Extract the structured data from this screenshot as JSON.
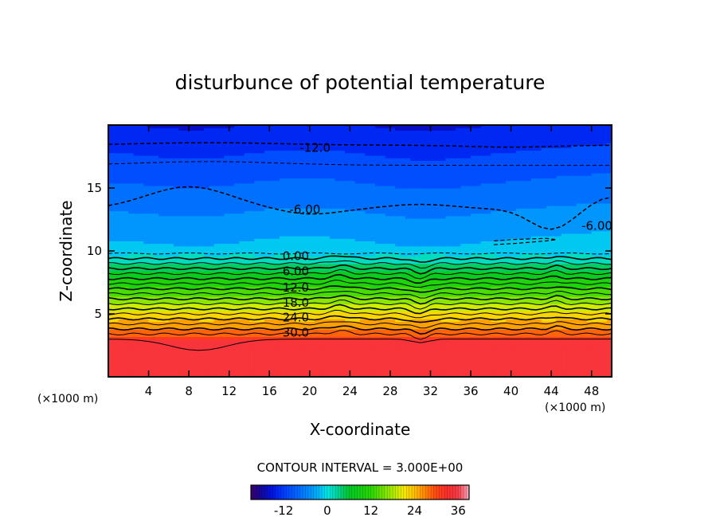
{
  "chart_data": {
    "type": "heatmap",
    "title": "disturbunce of potential temperature",
    "xlabel": "X-coordinate",
    "ylabel": "Z-coordinate",
    "x_unit_label": "(×1000 m)",
    "z_unit_label": "(×1000 m)",
    "xlim": [
      0,
      50
    ],
    "ylim": [
      0,
      20
    ],
    "x_ticks": [
      4,
      8,
      12,
      16,
      20,
      24,
      28,
      32,
      36,
      40,
      44,
      48
    ],
    "y_ticks": [
      5,
      10,
      15
    ],
    "contour_interval_text": "CONTOUR INTERVAL = 3.000E+00",
    "colorbar": {
      "range": [
        -21,
        39
      ],
      "tick_values": [
        -12,
        0,
        12,
        24,
        36
      ],
      "tick_labels": [
        "-12",
        "0",
        "12",
        "24",
        "36"
      ]
    },
    "contour_labels": [
      {
        "text": "-12.0",
        "x": 19.0,
        "z": 18.2
      },
      {
        "text": "-6.00",
        "x": 18.0,
        "z": 13.3
      },
      {
        "text": "-6.00",
        "x": 47.0,
        "z": 12.0
      },
      {
        "text": "0.00",
        "x": 17.3,
        "z": 9.6
      },
      {
        "text": "6.00",
        "x": 17.3,
        "z": 8.4
      },
      {
        "text": "12.0",
        "x": 17.3,
        "z": 7.1
      },
      {
        "text": "18.0",
        "x": 17.3,
        "z": 5.9
      },
      {
        "text": "24.0",
        "x": 17.3,
        "z": 4.7
      },
      {
        "text": "30.0",
        "x": 17.3,
        "z": 3.5
      }
    ]
  }
}
